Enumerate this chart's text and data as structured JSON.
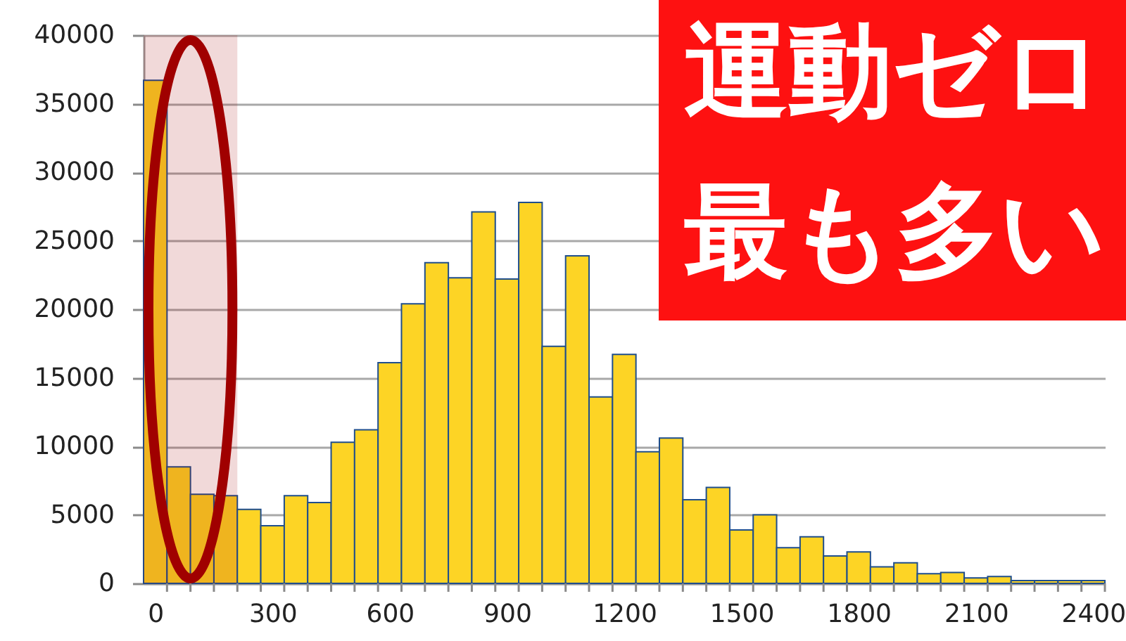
{
  "chart_data": {
    "type": "bar",
    "x": [
      0,
      60,
      120,
      180,
      240,
      300,
      360,
      420,
      480,
      540,
      600,
      660,
      720,
      780,
      840,
      900,
      960,
      1020,
      1080,
      1140,
      1200,
      1260,
      1320,
      1380,
      1440,
      1500,
      1560,
      1620,
      1680,
      1740,
      1800,
      1860,
      1920,
      1980,
      2040,
      2100,
      2160,
      2220,
      2280,
      2340,
      2400
    ],
    "values": [
      36700,
      8500,
      6500,
      6400,
      5400,
      4200,
      6400,
      5900,
      10300,
      11200,
      16100,
      20400,
      23400,
      22300,
      27100,
      22200,
      27800,
      17300,
      23900,
      13600,
      16700,
      9600,
      10600,
      6100,
      7000,
      3900,
      5000,
      2600,
      3400,
      2000,
      2300,
      1200,
      1500,
      700,
      800,
      400,
      500,
      200,
      200,
      200,
      200
    ],
    "color": "#fdd425",
    "xlim": [
      -30,
      2430
    ],
    "xticks": [
      0,
      {
        "value": 30,
        "label": null
      },
      {
        "value": 90,
        "label": null
      },
      {
        "value": 150,
        "label": null
      },
      {
        "value": 210,
        "label": null
      },
      {
        "value": 270,
        "label": null
      },
      300,
      {
        "value": 330,
        "label": null
      },
      {
        "value": 390,
        "label": null
      },
      {
        "value": 450,
        "label": null
      },
      {
        "value": 510,
        "label": null
      },
      {
        "value": 570,
        "label": null
      },
      600,
      {
        "value": 630,
        "label": null
      },
      {
        "value": 690,
        "label": null
      },
      {
        "value": 750,
        "label": null
      },
      {
        "value": 810,
        "label": null
      },
      {
        "value": 870,
        "label": null
      },
      900,
      {
        "value": 930,
        "label": null
      },
      {
        "value": 990,
        "label": null
      },
      {
        "value": 1050,
        "label": null
      },
      {
        "value": 1110,
        "label": null
      },
      {
        "value": 1170,
        "label": null
      },
      1200,
      {
        "value": 1230,
        "label": null
      },
      {
        "value": 1290,
        "label": null
      },
      {
        "value": 1350,
        "label": null
      },
      {
        "value": 1410,
        "label": null
      },
      {
        "value": 1470,
        "label": null
      },
      1500,
      {
        "value": 1530,
        "label": null
      },
      {
        "value": 1590,
        "label": null
      },
      {
        "value": 1650,
        "label": null
      },
      {
        "value": 1710,
        "label": null
      },
      {
        "value": 1770,
        "label": null
      },
      1800,
      {
        "value": 1830,
        "label": null
      },
      {
        "value": 1890,
        "label": null
      },
      {
        "value": 1950,
        "label": null
      },
      {
        "value": 2010,
        "label": null
      },
      {
        "value": 2070,
        "label": null
      },
      2100,
      {
        "value": 2130,
        "label": null
      },
      {
        "value": 2190,
        "label": null
      },
      {
        "value": 2250,
        "label": null
      },
      {
        "value": 2310,
        "label": null
      },
      {
        "value": 2370,
        "label": null
      },
      2400,
      {
        "value": 2430,
        "label": null
      }
    ],
    "ylim": [
      0,
      40000
    ],
    "yticks": [
      0,
      5000,
      10000,
      15000,
      20000,
      25000,
      30000,
      35000,
      40000
    ],
    "grid": "y",
    "bands": [
      {
        "axis": "x",
        "from": -30,
        "to": 210,
        "color": "#a00000"
      }
    ],
    "annotations": [
      "運動ゼロ",
      "最も多い"
    ]
  }
}
